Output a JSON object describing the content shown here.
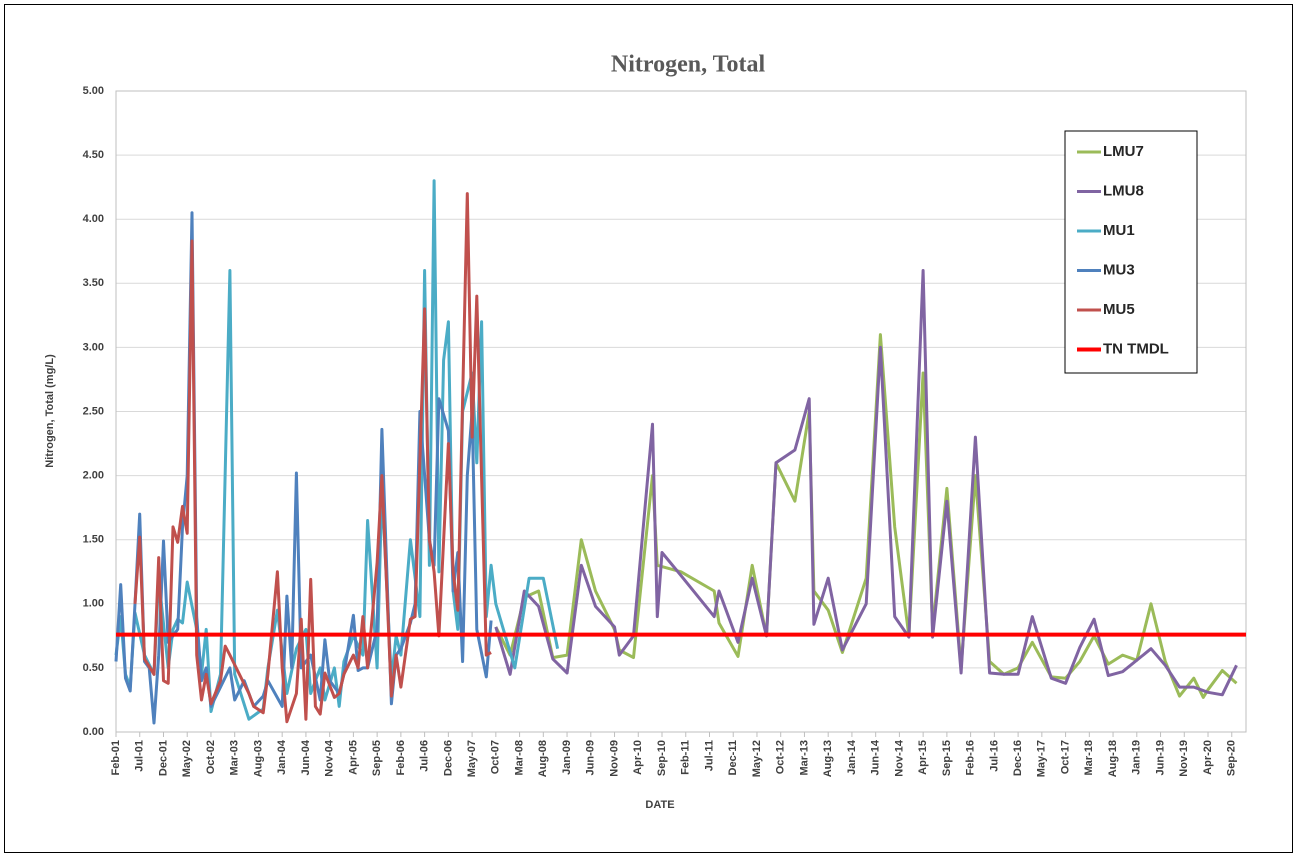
{
  "chart_data": {
    "type": "line",
    "title": "Nitrogen, Total",
    "xlabel": "DATE",
    "ylabel": "Nitrogen, Total (mg/L)",
    "xlim": [
      "2001-02",
      "2020-12"
    ],
    "xticks": [
      {
        "value": "2001-02",
        "label": "Feb-01"
      },
      {
        "value": "2001-07",
        "label": "Jul-01"
      },
      {
        "value": "2001-12",
        "label": "Dec-01"
      },
      {
        "value": "2002-05",
        "label": "May-02"
      },
      {
        "value": "2002-10",
        "label": "Oct-02"
      },
      {
        "value": "2003-03",
        "label": "Mar-03"
      },
      {
        "value": "2003-08",
        "label": "Aug-03"
      },
      {
        "value": "2004-01",
        "label": "Jan-04"
      },
      {
        "value": "2004-06",
        "label": "Jun-04"
      },
      {
        "value": "2004-11",
        "label": "Nov-04"
      },
      {
        "value": "2005-04",
        "label": "Apr-05"
      },
      {
        "value": "2005-09",
        "label": "Sep-05"
      },
      {
        "value": "2006-02",
        "label": "Feb-06"
      },
      {
        "value": "2006-07",
        "label": "Jul-06"
      },
      {
        "value": "2006-12",
        "label": "Dec-06"
      },
      {
        "value": "2007-05",
        "label": "May-07"
      },
      {
        "value": "2007-10",
        "label": "Oct-07"
      },
      {
        "value": "2008-03",
        "label": "Mar-08"
      },
      {
        "value": "2008-08",
        "label": "Aug-08"
      },
      {
        "value": "2009-01",
        "label": "Jan-09"
      },
      {
        "value": "2009-06",
        "label": "Jun-09"
      },
      {
        "value": "2009-11",
        "label": "Nov-09"
      },
      {
        "value": "2010-04",
        "label": "Apr-10"
      },
      {
        "value": "2010-09",
        "label": "Sep-10"
      },
      {
        "value": "2011-02",
        "label": "Feb-11"
      },
      {
        "value": "2011-07",
        "label": "Jul-11"
      },
      {
        "value": "2011-12",
        "label": "Dec-11"
      },
      {
        "value": "2012-05",
        "label": "May-12"
      },
      {
        "value": "2012-10",
        "label": "Oct-12"
      },
      {
        "value": "2013-03",
        "label": "Mar-13"
      },
      {
        "value": "2013-08",
        "label": "Aug-13"
      },
      {
        "value": "2014-01",
        "label": "Jan-14"
      },
      {
        "value": "2014-06",
        "label": "Jun-14"
      },
      {
        "value": "2014-11",
        "label": "Nov-14"
      },
      {
        "value": "2015-04",
        "label": "Apr-15"
      },
      {
        "value": "2015-09",
        "label": "Sep-15"
      },
      {
        "value": "2016-02",
        "label": "Feb-16"
      },
      {
        "value": "2016-07",
        "label": "Jul-16"
      },
      {
        "value": "2016-12",
        "label": "Dec-16"
      },
      {
        "value": "2017-05",
        "label": "May-17"
      },
      {
        "value": "2017-10",
        "label": "Oct-17"
      },
      {
        "value": "2018-03",
        "label": "Mar-18"
      },
      {
        "value": "2018-08",
        "label": "Aug-18"
      },
      {
        "value": "2019-01",
        "label": "Jan-19"
      },
      {
        "value": "2019-06",
        "label": "Jun-19"
      },
      {
        "value": "2019-11",
        "label": "Nov-19"
      },
      {
        "value": "2020-04",
        "label": "Apr-20"
      },
      {
        "value": "2020-09",
        "label": "Sep-20"
      }
    ],
    "ylim": [
      0,
      5
    ],
    "yticks": [
      {
        "value": 0,
        "label": "0.00"
      },
      {
        "value": 0.5,
        "label": "0.50"
      },
      {
        "value": 1,
        "label": "1.00"
      },
      {
        "value": 1.5,
        "label": "1.50"
      },
      {
        "value": 2,
        "label": "2.00"
      },
      {
        "value": 2.5,
        "label": "2.50"
      },
      {
        "value": 3,
        "label": "3.00"
      },
      {
        "value": 3.5,
        "label": "3.50"
      },
      {
        "value": 4,
        "label": "4.00"
      },
      {
        "value": 4.5,
        "label": "4.50"
      },
      {
        "value": 5,
        "label": "5.00"
      }
    ],
    "grid": true,
    "legend": "upper right",
    "series": [
      {
        "name": "LMU7",
        "color": "#9bbb59",
        "width": 3,
        "x": [
          "2007-10",
          "2008-01",
          "2008-04",
          "2008-07",
          "2008-10",
          "2009-01",
          "2009-04",
          "2009-07",
          "2009-11",
          "2009-12",
          "2010-03",
          "2010-07",
          "2010-08",
          "2011-01",
          "2011-08",
          "2011-09",
          "2012-01",
          "2012-04",
          "2012-07",
          "2012-09",
          "2013-01",
          "2013-04",
          "2013-05",
          "2013-08",
          "2013-11",
          "2014-04",
          "2014-07",
          "2014-10",
          "2015-01",
          "2015-04",
          "2015-06",
          "2015-09",
          "2015-12",
          "2016-03",
          "2016-06",
          "2016-09",
          "2016-12",
          "2017-03",
          "2017-07",
          "2017-10",
          "2018-01",
          "2018-04",
          "2018-07",
          "2018-10",
          "2019-01",
          "2019-04",
          "2019-07",
          "2019-10",
          "2020-01",
          "2020-03",
          "2020-04",
          "2020-07",
          "2020-10"
        ],
        "values": [
          0.82,
          0.6,
          1.05,
          1.1,
          0.58,
          0.6,
          1.5,
          1.1,
          0.8,
          0.64,
          0.58,
          2.0,
          1.3,
          1.25,
          1.1,
          0.85,
          0.59,
          1.3,
          0.75,
          2.1,
          1.8,
          2.5,
          1.1,
          0.95,
          0.62,
          1.2,
          3.1,
          1.6,
          0.75,
          2.8,
          0.8,
          1.9,
          0.5,
          2.0,
          0.55,
          0.45,
          0.5,
          0.7,
          0.43,
          0.42,
          0.55,
          0.75,
          0.53,
          0.6,
          0.56,
          1.0,
          0.55,
          0.28,
          0.42,
          0.27,
          0.33,
          0.48,
          0.38
        ]
      },
      {
        "name": "LMU8",
        "color": "#8064a2",
        "width": 3,
        "x": [
          "2007-10",
          "2008-01",
          "2008-04",
          "2008-07",
          "2008-10",
          "2009-01",
          "2009-04",
          "2009-07",
          "2009-11",
          "2009-12",
          "2010-03",
          "2010-07",
          "2010-08",
          "2010-09",
          "2011-01",
          "2011-08",
          "2011-09",
          "2012-01",
          "2012-04",
          "2012-07",
          "2012-09",
          "2013-01",
          "2013-04",
          "2013-05",
          "2013-08",
          "2013-11",
          "2014-04",
          "2014-07",
          "2014-10",
          "2015-01",
          "2015-04",
          "2015-06",
          "2015-09",
          "2015-12",
          "2016-03",
          "2016-06",
          "2016-09",
          "2016-12",
          "2017-03",
          "2017-07",
          "2017-10",
          "2018-01",
          "2018-04",
          "2018-07",
          "2018-10",
          "2019-04",
          "2019-07",
          "2019-10",
          "2020-01",
          "2020-04",
          "2020-07",
          "2020-10"
        ],
        "values": [
          0.82,
          0.45,
          1.1,
          0.98,
          0.57,
          0.46,
          1.3,
          0.98,
          0.82,
          0.6,
          0.75,
          2.4,
          0.9,
          1.4,
          1.22,
          0.9,
          1.1,
          0.7,
          1.2,
          0.75,
          2.1,
          2.2,
          2.6,
          0.84,
          1.2,
          0.64,
          1.0,
          3.0,
          0.9,
          0.74,
          3.6,
          0.74,
          1.8,
          0.46,
          2.3,
          0.46,
          0.45,
          0.45,
          0.9,
          0.42,
          0.38,
          0.66,
          0.88,
          0.44,
          0.47,
          0.65,
          0.52,
          0.35,
          0.35,
          0.31,
          0.29,
          0.52
        ]
      },
      {
        "name": "MU1",
        "color": "#4bacc6",
        "width": 3,
        "x": [
          "2001-02",
          "2001-03",
          "2001-04",
          "2001-05",
          "2001-06",
          "2001-08",
          "2001-10",
          "2001-11",
          "2002-01",
          "2002-02",
          "2002-03",
          "2002-04",
          "2002-05",
          "2002-07",
          "2002-08",
          "2002-09",
          "2002-10",
          "2002-12",
          "2003-02",
          "2003-03",
          "2003-06",
          "2003-09",
          "2003-10",
          "2003-12",
          "2004-02",
          "2004-04",
          "2004-06",
          "2004-07",
          "2004-09",
          "2004-10",
          "2004-12",
          "2005-01",
          "2005-02",
          "2005-04",
          "2005-06",
          "2005-07",
          "2005-09",
          "2005-10",
          "2005-12",
          "2006-01",
          "2006-02",
          "2006-04",
          "2006-06",
          "2006-07",
          "2006-08",
          "2006-09",
          "2006-10",
          "2006-11",
          "2006-12",
          "2007-01",
          "2007-02",
          "2007-03",
          "2007-05",
          "2007-06",
          "2007-07",
          "2007-08",
          "2007-09",
          "2007-10",
          "2008-02",
          "2008-05",
          "2008-08",
          "2008-11"
        ],
        "values": [
          0.6,
          0.9,
          0.45,
          0.35,
          0.93,
          0.6,
          0.45,
          1.2,
          0.5,
          0.8,
          0.88,
          0.85,
          1.17,
          0.8,
          0.45,
          0.8,
          0.16,
          0.45,
          3.6,
          0.45,
          0.1,
          0.18,
          0.5,
          0.95,
          0.3,
          0.65,
          0.8,
          0.3,
          0.5,
          0.25,
          0.5,
          0.2,
          0.55,
          0.75,
          0.6,
          1.65,
          0.5,
          1.9,
          0.4,
          0.75,
          0.6,
          1.5,
          0.9,
          3.6,
          1.3,
          4.3,
          1.25,
          2.9,
          3.2,
          1.1,
          0.8,
          2.5,
          2.8,
          2.1,
          3.2,
          0.9,
          1.3,
          1.0,
          0.5,
          1.2,
          1.2,
          0.65
        ]
      },
      {
        "name": "MU3",
        "color": "#4f81bd",
        "width": 3,
        "x": [
          "2001-02",
          "2001-03",
          "2001-04",
          "2001-05",
          "2001-06",
          "2001-07",
          "2001-08",
          "2001-09",
          "2001-10",
          "2001-11",
          "2001-12",
          "2002-01",
          "2002-03",
          "2002-04",
          "2002-05",
          "2002-06",
          "2002-07",
          "2002-08",
          "2002-09",
          "2002-10",
          "2002-12",
          "2003-02",
          "2003-03",
          "2003-05",
          "2003-07",
          "2003-09",
          "2003-10",
          "2004-01",
          "2004-02",
          "2004-03",
          "2004-04",
          "2004-05",
          "2004-07",
          "2004-09",
          "2004-10",
          "2004-11",
          "2005-01",
          "2005-02",
          "2005-04",
          "2005-05",
          "2005-06",
          "2005-07",
          "2005-09",
          "2005-10",
          "2005-12",
          "2006-01",
          "2006-02",
          "2006-04",
          "2006-05",
          "2006-06",
          "2006-08",
          "2006-09",
          "2006-10",
          "2006-12",
          "2007-01",
          "2007-02",
          "2007-03",
          "2007-04",
          "2007-05",
          "2007-06",
          "2007-08",
          "2007-09"
        ],
        "values": [
          0.55,
          1.15,
          0.42,
          0.32,
          1.0,
          1.7,
          0.55,
          0.5,
          0.07,
          0.6,
          1.49,
          0.7,
          0.8,
          1.6,
          2.0,
          4.05,
          0.9,
          0.4,
          0.5,
          0.2,
          0.35,
          0.5,
          0.25,
          0.4,
          0.2,
          0.28,
          0.4,
          0.2,
          1.06,
          0.5,
          2.02,
          0.5,
          0.6,
          0.25,
          0.72,
          0.4,
          0.3,
          0.45,
          0.91,
          0.48,
          0.5,
          0.5,
          0.8,
          2.36,
          0.22,
          0.6,
          0.65,
          0.85,
          1.0,
          2.5,
          1.5,
          1.3,
          2.6,
          2.35,
          1.1,
          1.4,
          0.55,
          2.0,
          2.5,
          0.8,
          0.43,
          0.87
        ]
      },
      {
        "name": "MU5",
        "color": "#c0504d",
        "width": 3,
        "x": [
          "2001-06",
          "2001-07",
          "2001-08",
          "2001-10",
          "2001-11",
          "2001-12",
          "2002-01",
          "2002-02",
          "2002-03",
          "2002-04",
          "2002-05",
          "2002-06",
          "2002-07",
          "2002-08",
          "2002-09",
          "2002-10",
          "2002-12",
          "2003-01",
          "2003-02",
          "2003-04",
          "2003-06",
          "2003-07",
          "2003-09",
          "2003-10",
          "2003-12",
          "2004-01",
          "2004-02",
          "2004-04",
          "2004-05",
          "2004-06",
          "2004-07",
          "2004-08",
          "2004-09",
          "2004-10",
          "2004-12",
          "2005-01",
          "2005-02",
          "2005-04",
          "2005-05",
          "2005-06",
          "2005-07",
          "2005-09",
          "2005-10",
          "2005-12",
          "2006-01",
          "2006-02",
          "2006-04",
          "2006-05",
          "2006-07",
          "2006-08",
          "2006-09",
          "2006-10",
          "2006-12",
          "2007-01",
          "2007-02",
          "2007-04",
          "2007-05",
          "2007-06",
          "2007-08",
          "2007-09"
        ],
        "values": [
          1.0,
          1.52,
          0.57,
          0.45,
          1.36,
          0.4,
          0.38,
          1.6,
          1.48,
          1.76,
          1.55,
          3.83,
          0.6,
          0.25,
          0.45,
          0.22,
          0.4,
          0.67,
          0.6,
          0.45,
          0.3,
          0.2,
          0.15,
          0.45,
          1.25,
          0.5,
          0.08,
          0.3,
          0.88,
          0.1,
          1.19,
          0.2,
          0.14,
          0.46,
          0.27,
          0.3,
          0.45,
          0.6,
          0.5,
          0.9,
          0.5,
          1.32,
          2.0,
          0.28,
          0.6,
          0.35,
          0.88,
          0.9,
          3.3,
          1.5,
          1.25,
          0.75,
          2.25,
          1.25,
          0.95,
          4.2,
          2.3,
          3.4,
          0.6,
          0.62
        ]
      },
      {
        "name": "TN TMDL",
        "color": "#ff0000",
        "width": 4,
        "x": [
          "2001-02",
          "2020-12"
        ],
        "values": [
          0.76,
          0.76
        ]
      }
    ]
  }
}
